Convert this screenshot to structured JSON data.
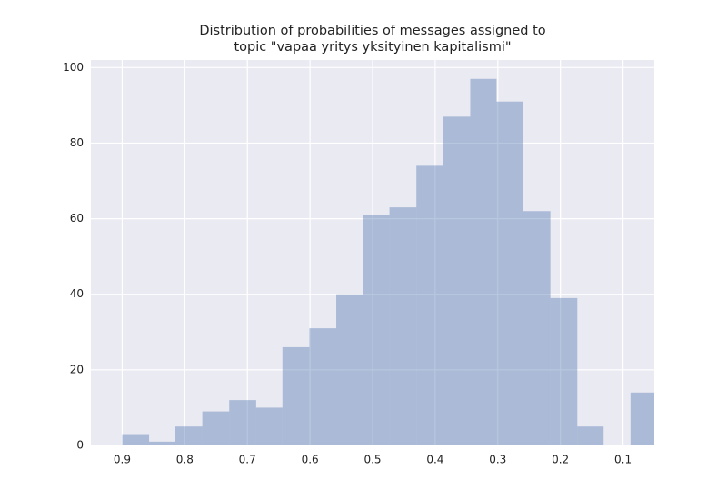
{
  "chart_data": {
    "type": "histogram",
    "title": [
      "Distribution of probabilities of messages assigned to",
      "topic \"vapaa yritys yksityinen kapitalismi\""
    ],
    "bins": [
      0.9,
      0.857,
      0.815,
      0.772,
      0.729,
      0.686,
      0.644,
      0.601,
      0.558,
      0.515,
      0.473,
      0.43,
      0.387,
      0.344,
      0.302,
      0.259,
      0.216,
      0.173,
      0.131,
      0.088,
      0.045
    ],
    "values": [
      3,
      1,
      5,
      9,
      12,
      10,
      26,
      31,
      40,
      61,
      63,
      74,
      87,
      97,
      91,
      62,
      39,
      5,
      0,
      14
    ],
    "color": "#4c72b0",
    "opacity": 0.4,
    "xlim": [
      0.95,
      0.05
    ],
    "xticks": [
      0.9,
      0.8,
      0.7,
      0.6,
      0.5,
      0.4,
      0.3,
      0.2,
      0.1
    ],
    "ylim": [
      0,
      102
    ],
    "yticks": [
      0,
      20,
      40,
      60,
      80,
      100
    ],
    "grid": true
  }
}
